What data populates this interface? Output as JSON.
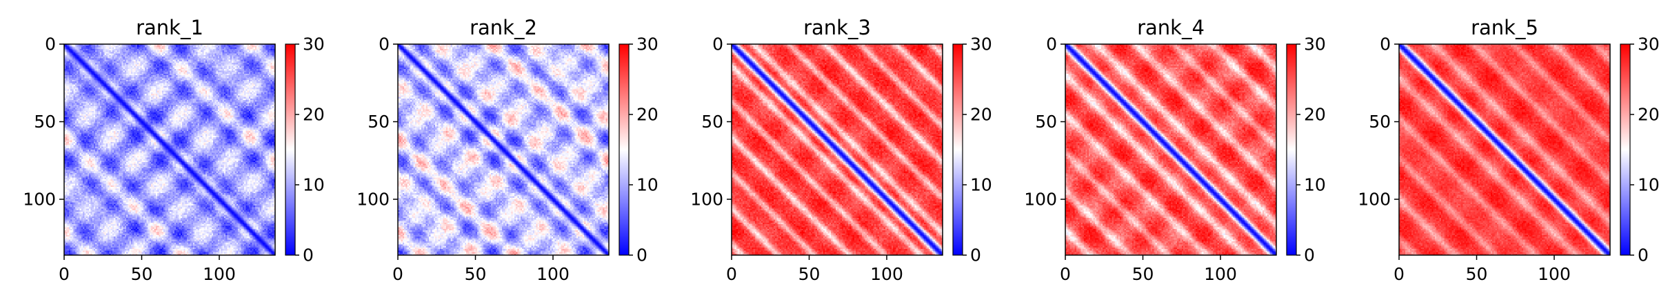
{
  "chart_data": [
    {
      "type": "heatmap",
      "title": "rank_1",
      "matrix_size": 136,
      "xlim": [
        0,
        136
      ],
      "ylim": [
        136,
        0
      ],
      "x_ticks": [
        0,
        50,
        100
      ],
      "y_ticks": [
        0,
        50,
        100
      ],
      "colorbar": {
        "range": [
          0,
          30
        ],
        "ticks": [
          0,
          10,
          20,
          30
        ],
        "colormap": "bwr"
      },
      "pattern": {
        "diag_sigma": 2.5,
        "band_sigma": 7,
        "band_amp": 9,
        "band_start": 10,
        "band_period": 20,
        "floor": 18,
        "noise": 3,
        "blob_period": 30,
        "blob_amp": 6,
        "off_scale": 1.6
      }
    },
    {
      "type": "heatmap",
      "title": "rank_2",
      "matrix_size": 136,
      "xlim": [
        0,
        136
      ],
      "ylim": [
        136,
        0
      ],
      "x_ticks": [
        0,
        50,
        100
      ],
      "y_ticks": [
        0,
        50,
        100
      ],
      "colorbar": {
        "range": [
          0,
          30
        ],
        "ticks": [
          0,
          10,
          20,
          30
        ],
        "colormap": "bwr"
      },
      "pattern": {
        "diag_sigma": 2.5,
        "band_sigma": 6,
        "band_amp": 9,
        "band_start": 12,
        "band_period": 20,
        "floor": 19,
        "noise": 3,
        "blob_period": 30,
        "blob_amp": 6,
        "off_scale": 1.4
      }
    },
    {
      "type": "heatmap",
      "title": "rank_3",
      "matrix_size": 136,
      "xlim": [
        0,
        136
      ],
      "ylim": [
        136,
        0
      ],
      "x_ticks": [
        0,
        50,
        100
      ],
      "y_ticks": [
        0,
        50,
        100
      ],
      "colorbar": {
        "range": [
          0,
          30
        ],
        "ticks": [
          0,
          10,
          20,
          30
        ],
        "colormap": "bwr"
      },
      "pattern": {
        "diag_sigma": 3,
        "band_sigma": 2.5,
        "band_amp": 9,
        "band_start": 14,
        "band_period": 23,
        "floor": 27,
        "noise": 2.5,
        "blob_period": 40,
        "blob_amp": 2,
        "off_scale": 0.5
      }
    },
    {
      "type": "heatmap",
      "title": "rank_4",
      "matrix_size": 136,
      "xlim": [
        0,
        136
      ],
      "ylim": [
        136,
        0
      ],
      "x_ticks": [
        0,
        50,
        100
      ],
      "y_ticks": [
        0,
        50,
        100
      ],
      "colorbar": {
        "range": [
          0,
          30
        ],
        "ticks": [
          0,
          10,
          20,
          30
        ],
        "colormap": "bwr"
      },
      "pattern": {
        "diag_sigma": 3,
        "band_sigma": 3,
        "band_amp": 8,
        "band_start": 20,
        "band_period": 25,
        "floor": 26,
        "noise": 2.5,
        "blob_period": 35,
        "blob_amp": 3,
        "off_scale": 0.6
      }
    },
    {
      "type": "heatmap",
      "title": "rank_5",
      "matrix_size": 136,
      "xlim": [
        0,
        136
      ],
      "ylim": [
        136,
        0
      ],
      "x_ticks": [
        0,
        50,
        100
      ],
      "y_ticks": [
        0,
        50,
        100
      ],
      "colorbar": {
        "range": [
          0,
          30
        ],
        "ticks": [
          0,
          10,
          20,
          30
        ],
        "colormap": "bwr"
      },
      "pattern": {
        "diag_sigma": 3,
        "band_sigma": 3,
        "band_amp": 6,
        "band_start": 22,
        "band_period": 26,
        "floor": 27,
        "noise": 2,
        "blob_period": 40,
        "blob_amp": 2,
        "off_scale": 0.4
      }
    }
  ]
}
